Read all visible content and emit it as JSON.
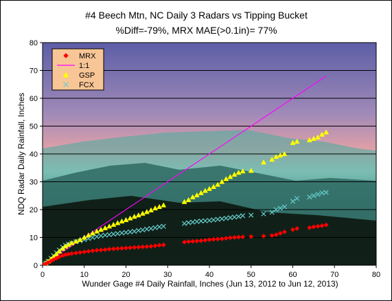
{
  "chart_data": {
    "type": "scatter",
    "title": "#4 Beech Mtn, NC Daily 3 Radars  vs Tipping Bucket",
    "subtitle": "%Diff=-79%, MRX MAE(>0.1in)= 77%",
    "xlabel": "Wunder Gage #4 Daily Rainfall, Inches (Jun 13, 2012 to Jun 12, 2013)",
    "ylabel": "NDQ Radar Daily Rainfall, Inches",
    "xlim": [
      0,
      80
    ],
    "ylim": [
      0,
      80
    ],
    "xticks": [
      "0",
      "10",
      "20",
      "30",
      "40",
      "50",
      "60",
      "70",
      "80"
    ],
    "yticks": [
      "0",
      "10",
      "20",
      "30",
      "40",
      "50",
      "60",
      "70",
      "80"
    ],
    "grid": true,
    "legend_position": "top-left",
    "series": [
      {
        "name": "MRX",
        "marker": "diamond",
        "color": "#ff0000",
        "x": [
          0.3,
          0.8,
          1.3,
          2.0,
          2.6,
          3.3,
          4.0,
          4.8,
          5.5,
          6.2,
          7.0,
          8.0,
          9.0,
          10.0,
          11.0,
          12.0,
          13.0,
          14.0,
          15.0,
          16.0,
          17.0,
          18.0,
          19.0,
          20.0,
          21.0,
          22.0,
          23.0,
          24.0,
          25.0,
          26.0,
          27.0,
          28.0,
          29.0,
          34.0,
          35.0,
          36.0,
          37.0,
          38.0,
          39.0,
          40.0,
          41.0,
          42.0,
          43.0,
          44.0,
          45.0,
          46.0,
          47.0,
          48.0,
          50.0,
          53.0,
          55.0,
          56.0,
          57.0,
          58.0,
          60.0,
          61.0,
          64.0,
          65.0,
          66.0,
          67.0,
          68.0
        ],
        "y": [
          0.2,
          0.5,
          1.0,
          1.5,
          2.0,
          2.5,
          3.0,
          3.5,
          3.8,
          4.0,
          4.2,
          4.4,
          4.6,
          4.8,
          5.0,
          5.2,
          5.4,
          5.5,
          5.6,
          5.8,
          5.9,
          6.0,
          6.1,
          6.2,
          6.3,
          6.4,
          6.5,
          6.6,
          6.7,
          6.8,
          7.0,
          7.2,
          7.3,
          8.3,
          8.5,
          8.6,
          8.7,
          8.8,
          9.0,
          9.2,
          9.3,
          9.4,
          9.5,
          9.7,
          9.9,
          10.0,
          10.1,
          10.2,
          10.3,
          10.5,
          10.7,
          11.0,
          11.5,
          12.0,
          12.8,
          13.2,
          13.5,
          13.8,
          14.0,
          14.2,
          14.5
        ]
      },
      {
        "name": "1:1",
        "marker": "line",
        "color": "#ff00ff",
        "x": [
          0,
          68
        ],
        "y": [
          0,
          68
        ]
      },
      {
        "name": "GSP",
        "marker": "triangle",
        "color": "#ffff00",
        "x": [
          0.3,
          0.8,
          1.3,
          2.0,
          2.6,
          3.3,
          4.0,
          4.8,
          5.5,
          6.2,
          7.0,
          8.0,
          9.0,
          10.0,
          11.0,
          12.0,
          13.0,
          14.0,
          15.0,
          16.0,
          17.0,
          18.0,
          19.0,
          20.0,
          21.0,
          22.0,
          23.0,
          24.0,
          25.0,
          26.0,
          27.0,
          28.0,
          29.0,
          34.0,
          35.0,
          36.0,
          37.0,
          38.0,
          39.0,
          40.0,
          41.0,
          42.0,
          43.0,
          44.0,
          45.0,
          46.0,
          47.0,
          48.0,
          50.0,
          53.0,
          55.0,
          56.0,
          57.0,
          58.0,
          60.0,
          61.0,
          64.0,
          65.0,
          66.0,
          67.0,
          68.0
        ],
        "y": [
          0.3,
          0.8,
          1.4,
          2.2,
          3.0,
          4.0,
          5.0,
          6.0,
          6.8,
          7.4,
          8.0,
          8.6,
          9.2,
          10.0,
          10.8,
          11.5,
          12.2,
          12.8,
          13.4,
          14.0,
          14.6,
          15.2,
          15.8,
          16.3,
          16.9,
          17.5,
          18.0,
          18.6,
          19.2,
          19.8,
          20.5,
          21.0,
          21.6,
          22.8,
          23.5,
          24.5,
          25.2,
          26.0,
          26.8,
          27.5,
          28.2,
          29.0,
          30.0,
          31.0,
          31.8,
          32.6,
          33.3,
          33.8,
          34.0,
          37.0,
          38.0,
          39.0,
          39.5,
          40.0,
          44.0,
          44.5,
          45.0,
          45.5,
          46.0,
          47.0,
          47.8
        ]
      },
      {
        "name": "FCX",
        "marker": "x",
        "color": "#66cccc",
        "x": [
          0.3,
          0.8,
          1.3,
          2.0,
          2.6,
          3.3,
          4.0,
          4.8,
          5.5,
          6.2,
          7.0,
          8.0,
          9.0,
          10.0,
          11.0,
          12.0,
          13.0,
          14.0,
          15.0,
          16.0,
          17.0,
          18.0,
          19.0,
          20.0,
          21.0,
          22.0,
          23.0,
          24.0,
          25.0,
          26.0,
          27.0,
          28.0,
          29.0,
          34.0,
          35.0,
          36.0,
          37.0,
          38.0,
          39.0,
          40.0,
          41.0,
          42.0,
          43.0,
          44.0,
          45.0,
          46.0,
          47.0,
          48.0,
          50.0,
          53.0,
          55.0,
          56.0,
          57.0,
          58.0,
          60.0,
          61.0,
          64.0,
          65.0,
          66.0,
          67.0,
          68.0
        ],
        "y": [
          0.3,
          0.8,
          1.5,
          2.5,
          3.5,
          4.5,
          5.5,
          6.5,
          7.2,
          7.6,
          8.0,
          8.5,
          8.8,
          9.2,
          9.6,
          10.0,
          10.3,
          10.6,
          10.8,
          11.0,
          11.2,
          11.4,
          11.6,
          11.8,
          12.0,
          12.2,
          12.5,
          12.7,
          13.0,
          13.2,
          13.5,
          13.8,
          14.0,
          15.0,
          15.3,
          15.5,
          15.7,
          15.9,
          16.0,
          16.1,
          16.3,
          16.5,
          16.7,
          16.9,
          17.1,
          17.3,
          17.5,
          17.8,
          18.0,
          18.5,
          19.0,
          20.0,
          20.5,
          21.0,
          23.0,
          24.0,
          24.5,
          25.0,
          25.5,
          26.0,
          26.2
        ]
      }
    ]
  },
  "plot_background": {
    "sky_top": "#5c5ea6",
    "sky_mid": "#a08ab8",
    "horizon_glow": "#e0a0a8",
    "haze": "#b8e0d8",
    "mountain_far": "#5aaaa0",
    "mountain_mid": "#2f6a63",
    "forest_dark": "#102018"
  }
}
